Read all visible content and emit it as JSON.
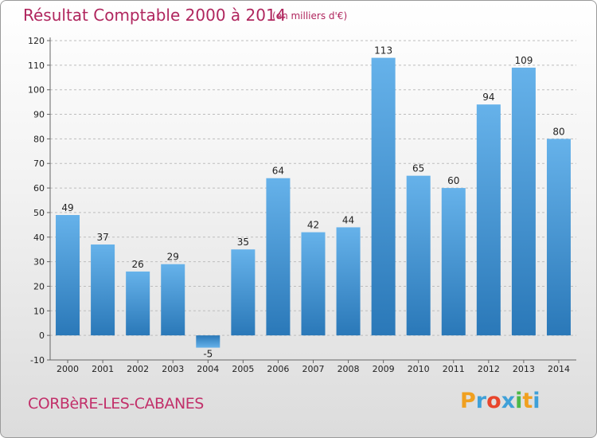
{
  "title": "Résultat Comptable 2000 à 2014",
  "subtitle": "(en milliers d'€)",
  "place": "CORBèRE-LES-CABANES",
  "logo": {
    "letters": [
      "P",
      "r",
      "o",
      "x",
      "i",
      "t",
      "i"
    ],
    "colors": [
      "#f0a020",
      "#3fa0d8",
      "#e8452c",
      "#3fa0d8",
      "#4cb848",
      "#f0a020",
      "#3fa0d8"
    ]
  },
  "colors": {
    "bar_light": "#66b2ea",
    "bar_dark": "#2a78b8",
    "title": "#b0265e"
  },
  "chart_data": {
    "type": "bar",
    "title": "Résultat Comptable 2000 à 2014",
    "subtitle": "(en milliers d'€)",
    "categories": [
      "2000",
      "2001",
      "2002",
      "2003",
      "2004",
      "2005",
      "2006",
      "2007",
      "2008",
      "2009",
      "2010",
      "2011",
      "2012",
      "2013",
      "2014"
    ],
    "values": [
      49,
      37,
      26,
      29,
      -5,
      35,
      64,
      42,
      44,
      113,
      65,
      60,
      94,
      109,
      80
    ],
    "ylim": [
      -10,
      120
    ],
    "yticks": [
      -10,
      0,
      10,
      20,
      30,
      40,
      50,
      60,
      70,
      80,
      90,
      100,
      110,
      120
    ],
    "grid": true,
    "legend": "none"
  }
}
